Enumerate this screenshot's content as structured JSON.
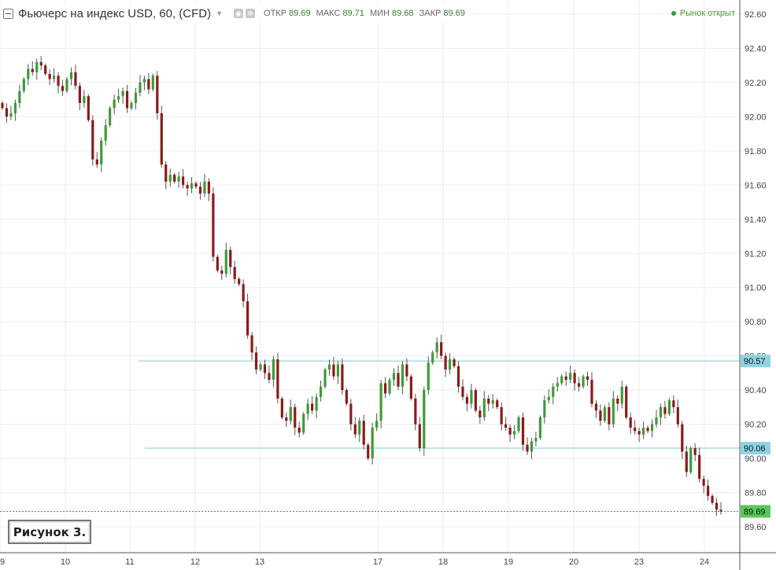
{
  "header": {
    "title": "Фьючерс на индекс USD, 60, (CFD)",
    "ohlc": [
      {
        "label": "ОТКР",
        "value": "89.69"
      },
      {
        "label": "МАКС",
        "value": "89.71"
      },
      {
        "label": "МИН",
        "value": "89.68"
      },
      {
        "label": "ЗАКР",
        "value": "89.69"
      }
    ],
    "market_status": "Рынок открыт"
  },
  "figure_label": "Рисунок 3.",
  "colors": {
    "up": "#3f9a3a",
    "down": "#8b1a1a",
    "grid": "#ededed",
    "level": "#7ec8d8",
    "price": "#3aa43a"
  },
  "chart_data": {
    "type": "candlestick",
    "y_axis": {
      "min": 89.5,
      "max": 92.64,
      "ticks": [
        "92.60",
        "92.40",
        "92.20",
        "92.00",
        "91.80",
        "91.60",
        "91.40",
        "91.20",
        "91.00",
        "90.80",
        "90.60",
        "90.40",
        "90.20",
        "90.00",
        "89.80",
        "89.60"
      ]
    },
    "x_ticks": [
      "9",
      "10",
      "11",
      "12",
      "13",
      "17",
      "18",
      "19",
      "20",
      "23",
      "24"
    ],
    "levels": [
      {
        "price": 90.57,
        "label": "90.57"
      },
      {
        "price": 90.06,
        "label": "90.06"
      }
    ],
    "last_price": {
      "price": 89.69,
      "label": "89.69"
    },
    "close_series": [
      92.05,
      92.0,
      92.02,
      92.08,
      92.15,
      92.22,
      92.28,
      92.26,
      92.32,
      92.3,
      92.25,
      92.22,
      92.24,
      92.18,
      92.15,
      92.22,
      92.26,
      92.18,
      92.08,
      92.12,
      91.98,
      91.75,
      91.72,
      91.86,
      91.95,
      92.05,
      92.1,
      92.12,
      92.15,
      92.05,
      92.08,
      92.14,
      92.2,
      92.22,
      92.16,
      92.24,
      92.02,
      91.72,
      91.62,
      91.66,
      91.62,
      91.65,
      91.6,
      91.58,
      91.61,
      91.59,
      91.55,
      91.62,
      91.55,
      91.18,
      91.1,
      91.08,
      91.22,
      91.12,
      91.05,
      91.02,
      90.92,
      90.72,
      90.62,
      90.52,
      90.55,
      90.5,
      90.46,
      90.58,
      90.35,
      90.24,
      90.22,
      90.3,
      90.18,
      90.15,
      90.26,
      90.32,
      90.28,
      90.36,
      90.42,
      90.52,
      90.55,
      90.48,
      90.55,
      90.4,
      90.32,
      90.2,
      90.14,
      90.22,
      90.08,
      90.0,
      90.18,
      90.22,
      90.44,
      90.38,
      90.46,
      90.5,
      90.42,
      90.55,
      90.48,
      90.35,
      90.2,
      90.06,
      90.4,
      90.56,
      90.62,
      90.68,
      90.6,
      90.52,
      90.58,
      90.54,
      90.42,
      90.36,
      90.32,
      90.4,
      90.28,
      90.24,
      90.35,
      90.32,
      90.34,
      90.3,
      90.2,
      90.18,
      90.14,
      90.16,
      90.24,
      90.08,
      90.04,
      90.1,
      90.12,
      90.24,
      90.34,
      90.36,
      90.42,
      90.44,
      90.48,
      90.46,
      90.5,
      90.44,
      90.42,
      90.48,
      90.46,
      90.32,
      90.28,
      90.22,
      90.3,
      90.2,
      90.35,
      90.32,
      90.42,
      90.24,
      90.18,
      90.16,
      90.14,
      90.18,
      90.16,
      90.2,
      90.24,
      90.3,
      90.26,
      90.34,
      90.3,
      90.2,
      90.04,
      89.92,
      90.06,
      90.02,
      89.88,
      89.84,
      89.78,
      89.74,
      89.7,
      89.69
    ]
  }
}
